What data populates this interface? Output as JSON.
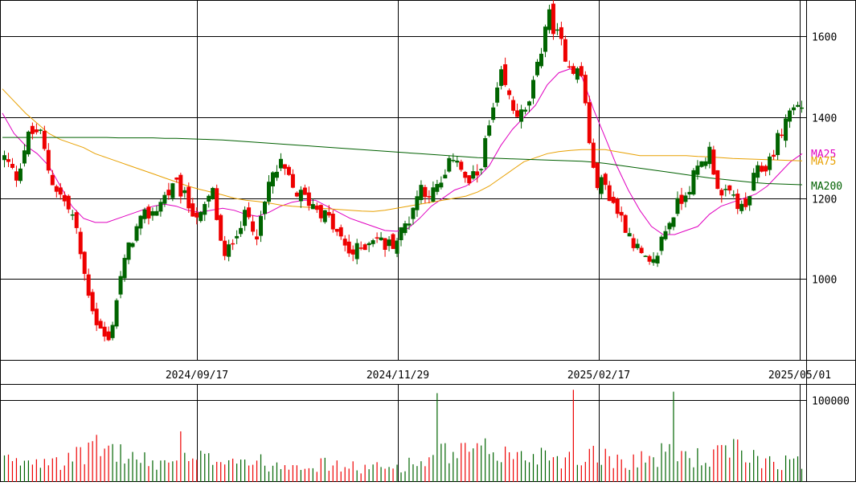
{
  "chart_data": {
    "type": "candlestick",
    "price_axis": {
      "ticks": [
        1000,
        1200,
        1400,
        1600
      ],
      "tick_labels": [
        "1000",
        "1200",
        "1400",
        "1600"
      ],
      "range": [
        800,
        1690
      ]
    },
    "volume_axis": {
      "ticks": [
        100000
      ],
      "tick_labels": [
        "100000"
      ],
      "range": [
        0,
        120000
      ]
    },
    "date_axis": {
      "labels": [
        "2024/09/17",
        "2024/11/29",
        "2025/02/17",
        "2025/05/01"
      ]
    },
    "legend": [
      {
        "label": "MA25",
        "color": "#e000c0"
      },
      {
        "label": "MA75",
        "color": "#e8a000"
      },
      {
        "label": "MA200",
        "color": "#006000"
      }
    ],
    "colors": {
      "up": "#006400",
      "down": "#ee0000",
      "grid": "#000000"
    },
    "anchors": {
      "closes": [
        1300,
        1250,
        1350,
        1370,
        1250,
        1200,
        1150,
        1000,
        890,
        840,
        1000,
        1100,
        1150,
        1170,
        1210,
        1230,
        1180,
        1150,
        1220,
        1040,
        1120,
        1160,
        1110,
        1250,
        1280,
        1220,
        1200,
        1180,
        1150,
        1100,
        1060,
        1080,
        1110,
        1080,
        1100,
        1150,
        1230,
        1210,
        1240,
        1320,
        1230,
        1260,
        1380,
        1500,
        1420,
        1400,
        1500,
        1660,
        1590,
        1530,
        1500,
        1250,
        1230,
        1170,
        1120,
        1060,
        1020,
        1110,
        1170,
        1220,
        1270,
        1320,
        1200,
        1210,
        1160,
        1260,
        1280,
        1350,
        1420,
        1430
      ],
      "volumes": [
        28000,
        22000,
        30000,
        26000,
        38000,
        24000,
        28000,
        35000,
        40000,
        42000,
        36000,
        30000,
        26000,
        22000,
        25000,
        30000,
        24000,
        28000,
        27000,
        33000,
        30000,
        26000,
        24000,
        22000,
        21000,
        26000,
        24000,
        20000,
        22000,
        19000,
        18000,
        17000,
        18000,
        16000,
        20000,
        22000,
        24000,
        28000,
        36000,
        30000,
        38000,
        34000,
        40000,
        36000,
        32000,
        30000,
        34000,
        36000,
        30000,
        28000,
        26000,
        44000,
        30000,
        28000,
        26000,
        30000,
        28000,
        34000,
        36000,
        32000,
        30000,
        26000,
        36000,
        38000,
        34000,
        30000,
        28000,
        26000,
        24000,
        22000
      ]
    },
    "moving_averages": {
      "MA25": [
        1410,
        1360,
        1330,
        1310,
        1280,
        1230,
        1180,
        1150,
        1140,
        1140,
        1150,
        1160,
        1170,
        1180,
        1185,
        1180,
        1170,
        1165,
        1170,
        1175,
        1170,
        1160,
        1155,
        1165,
        1180,
        1190,
        1195,
        1195,
        1180,
        1165,
        1150,
        1140,
        1130,
        1120,
        1118,
        1125,
        1150,
        1180,
        1200,
        1220,
        1230,
        1250,
        1280,
        1330,
        1370,
        1400,
        1430,
        1480,
        1510,
        1520,
        1500,
        1420,
        1350,
        1280,
        1220,
        1170,
        1130,
        1110,
        1110,
        1120,
        1130,
        1160,
        1180,
        1190,
        1200,
        1210,
        1230,
        1260,
        1290,
        1310
      ],
      "MA75": [
        1470,
        1440,
        1410,
        1385,
        1360,
        1345,
        1335,
        1325,
        1310,
        1300,
        1290,
        1280,
        1270,
        1260,
        1250,
        1240,
        1230,
        1222,
        1215,
        1208,
        1200,
        1195,
        1192,
        1188,
        1183,
        1180,
        1178,
        1176,
        1174,
        1172,
        1170,
        1168,
        1167,
        1170,
        1175,
        1180,
        1185,
        1190,
        1195,
        1200,
        1205,
        1215,
        1230,
        1250,
        1270,
        1290,
        1300,
        1310,
        1315,
        1318,
        1320,
        1320,
        1320,
        1315,
        1310,
        1305,
        1305,
        1305,
        1305,
        1305,
        1303,
        1302,
        1300,
        1298,
        1297,
        1296,
        1295,
        1294,
        1293,
        1292
      ],
      "MA200": [
        1350,
        1350,
        1350,
        1350,
        1350,
        1350,
        1350,
        1350,
        1350,
        1350,
        1349,
        1349,
        1349,
        1349,
        1348,
        1348,
        1347,
        1346,
        1345,
        1344,
        1342,
        1340,
        1338,
        1336,
        1334,
        1332,
        1330,
        1328,
        1326,
        1324,
        1322,
        1320,
        1318,
        1316,
        1314,
        1312,
        1310,
        1308,
        1306,
        1304,
        1302,
        1300,
        1299,
        1298,
        1297,
        1296,
        1295,
        1294,
        1293,
        1292,
        1291,
        1289,
        1286,
        1282,
        1278,
        1274,
        1270,
        1266,
        1262,
        1258,
        1254,
        1250,
        1247,
        1244,
        1241,
        1238,
        1236,
        1235,
        1234,
        1233
      ]
    }
  }
}
